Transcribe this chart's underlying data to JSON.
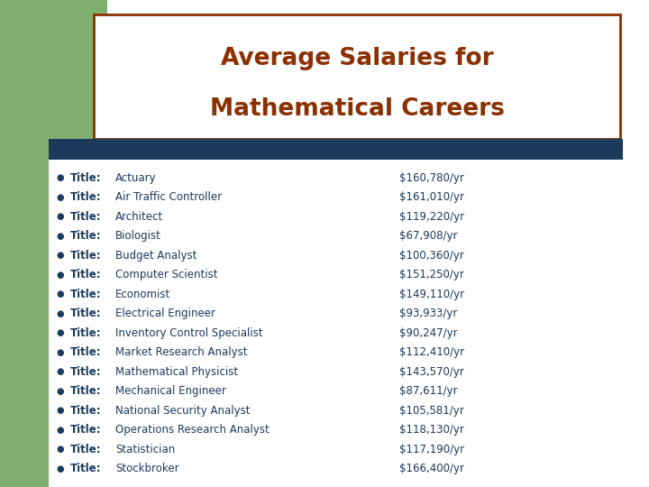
{
  "title_line1": "Average Salaries for",
  "title_line2": "Mathematical Careers",
  "title_color": "#8B3000",
  "background_color": "#FFFFFF",
  "green_bg_color": "#7FAF6E",
  "header_bar_color": "#1B3A5C",
  "title_box_border_color": "#8B3000",
  "title_box_bg": "#FFFFFF",
  "bullet_color": "#1B3A5C",
  "label_bold_color": "#1B3A5C",
  "link_color": "#1B3A5C",
  "salary_color": "#1B3A5C",
  "careers": [
    {
      "title": "Actuary",
      "salary": "$160,780/yr"
    },
    {
      "title": "Air Traffic Controller",
      "salary": "$161,010/yr"
    },
    {
      "title": "Architect",
      "salary": "$119,220/yr"
    },
    {
      "title": "Biologist",
      "salary": "$67,908/yr"
    },
    {
      "title": "Budget Analyst",
      "salary": "$100,360/yr"
    },
    {
      "title": "Computer Scientist",
      "salary": "$151,250/yr"
    },
    {
      "title": "Economist",
      "salary": "$149,110/yr"
    },
    {
      "title": "Electrical Engineer",
      "salary": "$93,933/yr"
    },
    {
      "title": "Inventory Control Specialist",
      "salary": "$90,247/yr"
    },
    {
      "title": "Market Research Analyst",
      "salary": "$112,410/yr"
    },
    {
      "title": "Mathematical Physicist",
      "salary": "$143,570/yr"
    },
    {
      "title": "Mechanical Engineer",
      "salary": "$87,611/yr"
    },
    {
      "title": "National Security Analyst",
      "salary": "$105,581/yr"
    },
    {
      "title": "Operations Research Analyst",
      "salary": "$118,130/yr"
    },
    {
      "title": "Statistician",
      "salary": "$117,190/yr"
    },
    {
      "title": "Stockbroker",
      "salary": "$166,400/yr"
    }
  ]
}
